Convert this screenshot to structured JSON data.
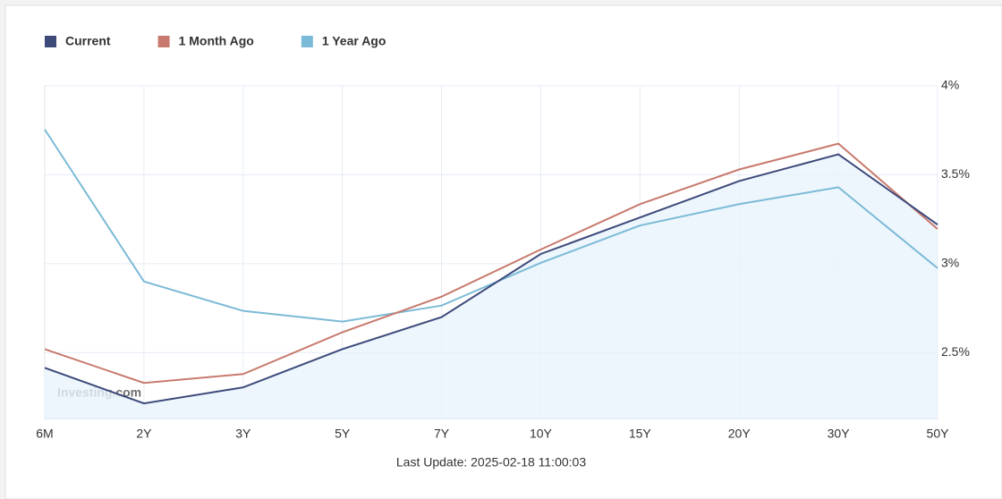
{
  "chart_data": {
    "type": "line",
    "categories": [
      "6M",
      "2Y",
      "3Y",
      "5Y",
      "7Y",
      "10Y",
      "15Y",
      "20Y",
      "30Y",
      "50Y"
    ],
    "series": [
      {
        "name": "Current",
        "color": "#3d4a7a",
        "values": [
          2.415,
          2.215,
          2.305,
          2.52,
          2.7,
          3.055,
          3.26,
          3.465,
          3.615,
          3.22
        ]
      },
      {
        "name": "1 Month Ago",
        "color": "#c87a6e",
        "values": [
          2.52,
          2.33,
          2.38,
          2.615,
          2.815,
          3.08,
          3.335,
          3.53,
          3.675,
          3.195
        ]
      },
      {
        "name": "1 Year Ago",
        "color": "#7bbad6",
        "values": [
          3.755,
          2.9,
          2.735,
          2.675,
          2.765,
          3.005,
          3.215,
          3.335,
          3.43,
          2.975
        ]
      }
    ],
    "ylim": [
      2.13,
      4
    ],
    "yticks": [
      {
        "value": 2.5,
        "label": "2.5%"
      },
      {
        "value": 3,
        "label": "3%"
      },
      {
        "value": 3.5,
        "label": "3.5%"
      },
      {
        "value": 4,
        "label": "4%"
      }
    ],
    "grid": true,
    "legend": "top-left",
    "watermark": "Investing.com",
    "footer": "Last Update: 2025-02-18 11:00:03"
  }
}
